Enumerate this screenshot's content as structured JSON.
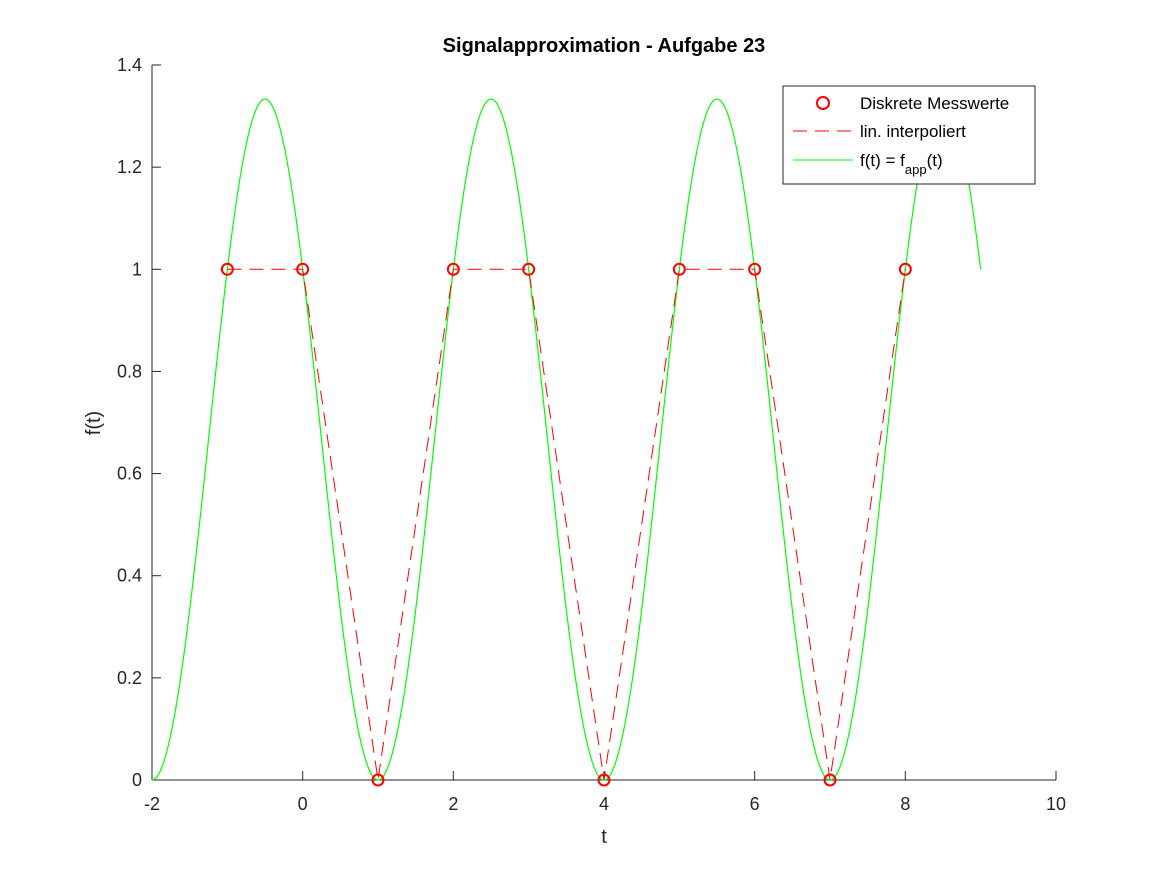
{
  "chart_data": {
    "type": "line",
    "title": "Signalapproximation - Aufgabe 23",
    "xlabel": "t",
    "ylabel": "f(t)",
    "xlim": [
      -2,
      10
    ],
    "ylim": [
      0,
      1.4
    ],
    "xticks": [
      -2,
      0,
      2,
      4,
      6,
      8,
      10
    ],
    "yticks": [
      0,
      0.2,
      0.4,
      0.6,
      0.8,
      1,
      1.2,
      1.4
    ],
    "xtick_labels": [
      "-2",
      "0",
      "2",
      "4",
      "6",
      "8",
      "10"
    ],
    "ytick_labels": [
      "0",
      "0.2",
      "0.4",
      "0.6",
      "0.8",
      "1",
      "1.2",
      "1.4"
    ],
    "grid": false,
    "legend_position": "top-right",
    "legend": {
      "entries": [
        {
          "label": "Diskrete Messwerte"
        },
        {
          "label": "lin. interpoliert"
        },
        {
          "label_main": "f(t) = f",
          "label_sub": "app",
          "label_end": "(t)"
        }
      ]
    },
    "series": [
      {
        "name": "Diskrete Messwerte",
        "style": "markers",
        "marker": "circle",
        "color": "#ff0000",
        "x": [
          -1,
          0,
          1,
          2,
          3,
          4,
          5,
          6,
          7,
          8
        ],
        "y": [
          1,
          1,
          0,
          1,
          1,
          0,
          1,
          1,
          0,
          1
        ]
      },
      {
        "name": "lin. interpoliert",
        "style": "dashed",
        "color": "#ff0000",
        "x": [
          -1,
          0,
          1,
          2,
          3,
          4,
          5,
          6,
          7,
          8
        ],
        "y": [
          1,
          1,
          0,
          1,
          1,
          0,
          1,
          1,
          0,
          1
        ]
      },
      {
        "name": "f(t) = f_app(t)",
        "style": "solid",
        "color": "#00ff00",
        "function": "f(t) = 2/3 - (2/3)*cos(2*pi*(t+2)/3)",
        "x_range": [
          -2,
          9
        ]
      }
    ]
  }
}
